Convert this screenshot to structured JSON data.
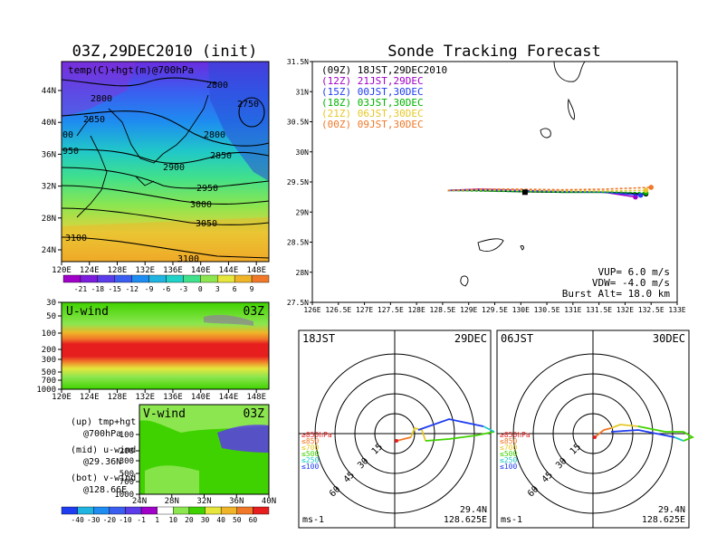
{
  "left_top": {
    "title": "03Z,29DEC2010 (init)",
    "subtitle": "temp(C)+hgt(m)@700hPa",
    "x_ticks": [
      "120E",
      "124E",
      "128E",
      "132E",
      "136E",
      "140E",
      "144E",
      "148E"
    ],
    "y_ticks": [
      "24N",
      "28N",
      "32N",
      "36N",
      "40N",
      "44N"
    ],
    "contour_labels": [
      "2800",
      "2800",
      "2750",
      "2850",
      "2800",
      "2900",
      "2850",
      "2950",
      "3000",
      "3050",
      "3100",
      "3100",
      "00",
      "950"
    ],
    "colorbar_labels": [
      "-21",
      "-18",
      "-15",
      "-12",
      "-9",
      "-6",
      "-3",
      "0",
      "3",
      "6",
      "9"
    ],
    "colorbar_colors": [
      "#a000c8",
      "#7c1cdc",
      "#5a3ce8",
      "#3a5ef0",
      "#1e8cf0",
      "#20b4e0",
      "#20d2c8",
      "#40e08c",
      "#8ce650",
      "#e6e63c",
      "#f0b428",
      "#f07828"
    ]
  },
  "uwind": {
    "label": "U-wind",
    "time": "03Z",
    "y_ticks": [
      "30",
      "50",
      "100",
      "200",
      "300",
      "500",
      "700",
      "1000"
    ],
    "x_ticks": [
      "120E",
      "124E",
      "128E",
      "132E",
      "136E",
      "140E",
      "144E",
      "148E"
    ]
  },
  "vwind": {
    "label": "V-wind",
    "time": "03Z",
    "y_ticks": [
      "100",
      "200",
      "300",
      "500",
      "700",
      "1000"
    ],
    "x_ticks": [
      "24N",
      "28N",
      "32N",
      "36N",
      "40N"
    ]
  },
  "legend_text": {
    "up1": "(up) tmp+hgt",
    "up2": "@700hPa",
    "mid1": "(mid) u-wind",
    "mid2": "@29.36N",
    "bot1": "(bot) v-wind",
    "bot2": "@128.66E"
  },
  "wind_colorbar": {
    "labels": [
      "-40",
      "-30",
      "-20",
      "-10",
      "-1",
      "1",
      "10",
      "20",
      "30",
      "40",
      "50",
      "60"
    ],
    "colors": [
      "#20b4e0",
      "#1e8cf0",
      "#3a5ef0",
      "#5a3ce8",
      "#a000c8",
      "#ffffff",
      "#8ce650",
      "#40d200",
      "#e6e63c",
      "#f0b428",
      "#f07828",
      "#e61e1e"
    ]
  },
  "tracking": {
    "title": "Sonde Tracking Forecast",
    "x_ticks": [
      "126E",
      "126.5E",
      "127E",
      "127.5E",
      "128E",
      "128.5E",
      "129E",
      "129.5E",
      "130E",
      "130.5E",
      "131E",
      "131.5E",
      "132E",
      "132.5E",
      "133E"
    ],
    "y_ticks": [
      "27.5N",
      "28N",
      "28.5N",
      "29N",
      "29.5N",
      "30N",
      "30.5N",
      "31N",
      "31.5N"
    ],
    "legend": [
      {
        "text": "(09Z)  18JST,29DEC2010",
        "color": "#000000"
      },
      {
        "text": "(12Z)  21JST,29DEC",
        "color": "#a000c8"
      },
      {
        "text": "(15Z)  00JST,30DEC",
        "color": "#1e3cf0"
      },
      {
        "text": "(18Z)  03JST,30DEC",
        "color": "#00b400"
      },
      {
        "text": "(21Z)  06JST,30DEC",
        "color": "#e6c828"
      },
      {
        "text": "(00Z)  09JST,30DEC",
        "color": "#f07828"
      }
    ],
    "vup": "VUP= 6.0  m/s",
    "vdw": "VDW= -4.0  m/s",
    "burst": "Burst Alt= 18.0  km"
  },
  "chart_data": {
    "type": "line",
    "title": "Sonde Tracking Forecast",
    "xlim": [
      126,
      133
    ],
    "ylim": [
      27.5,
      31.5
    ],
    "series": [
      {
        "name": "(09Z)  18JST,29DEC2010",
        "x": [
          128.6,
          129.2,
          130.0,
          130.8,
          131.6,
          132.4
        ],
        "y": [
          29.36,
          29.36,
          29.34,
          29.33,
          29.33,
          29.3
        ]
      },
      {
        "name": "(12Z)  21JST,29DEC",
        "x": [
          128.6,
          129.2,
          130.0,
          130.8,
          131.6,
          132.2
        ],
        "y": [
          29.36,
          29.38,
          29.36,
          29.34,
          29.33,
          29.25
        ]
      },
      {
        "name": "(15Z)  00JST,30DEC",
        "x": [
          128.6,
          129.2,
          130.0,
          130.8,
          131.6,
          132.3
        ],
        "y": [
          29.36,
          29.37,
          29.35,
          29.34,
          29.33,
          29.28
        ]
      },
      {
        "name": "(18Z)  03JST,30DEC",
        "x": [
          128.6,
          129.2,
          130.0,
          130.8,
          131.6,
          132.4
        ],
        "y": [
          29.36,
          29.35,
          29.34,
          29.33,
          29.33,
          29.32
        ]
      },
      {
        "name": "(21Z)  06JST,30DEC",
        "x": [
          128.6,
          129.2,
          130.0,
          130.8,
          131.6,
          132.4
        ],
        "y": [
          29.36,
          29.37,
          29.36,
          29.35,
          29.35,
          29.36
        ]
      },
      {
        "name": "(00Z)  09JST,30DEC",
        "x": [
          128.6,
          129.2,
          130.0,
          130.8,
          131.6,
          132.5
        ],
        "y": [
          29.36,
          29.38,
          29.38,
          29.37,
          29.38,
          29.41
        ]
      }
    ],
    "launch_point": [
      130.08,
      29.33
    ]
  },
  "hodo_left": {
    "time": "18JST",
    "date": "29DEC",
    "unit": "ms-1",
    "lat": "29.4N",
    "lon": "128.625E",
    "ring_labels": [
      "15",
      "30",
      "45",
      "60"
    ],
    "levels": [
      {
        "text": "≥850hPa",
        "color": "#e61e1e"
      },
      {
        "text": "≤850",
        "color": "#f07828"
      },
      {
        "text": "≤700",
        "color": "#e6c828"
      },
      {
        "text": "≤500",
        "color": "#40d200"
      },
      {
        "text": "≤250",
        "color": "#20c8c8"
      },
      {
        "text": "≤100",
        "color": "#1e3cf0"
      }
    ]
  },
  "hodo_right": {
    "time": "06JST",
    "date": "30DEC",
    "unit": "ms-1",
    "lat": "29.4N",
    "lon": "128.625E",
    "ring_labels": [
      "15",
      "30",
      "45",
      "60"
    ],
    "levels": [
      {
        "text": "≥850hPa",
        "color": "#e61e1e"
      },
      {
        "text": "≤850",
        "color": "#f07828"
      },
      {
        "text": "≤700",
        "color": "#e6c828"
      },
      {
        "text": "≤500",
        "color": "#40d200"
      },
      {
        "text": "≤250",
        "color": "#20c8c8"
      },
      {
        "text": "≤100",
        "color": "#1e3cf0"
      }
    ]
  }
}
